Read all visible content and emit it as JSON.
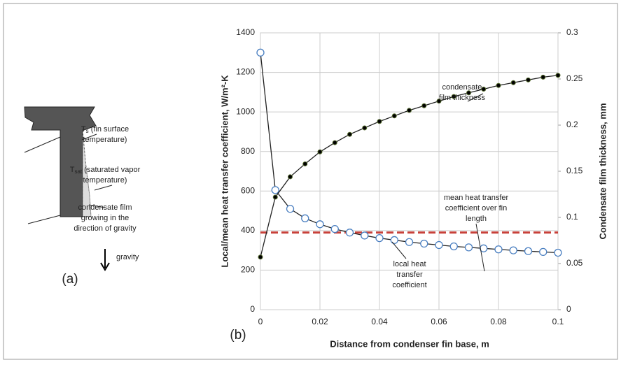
{
  "diagram": {
    "label": "(a)",
    "annotations": [
      {
        "symbol": "T",
        "subscript": "s",
        "lines": [
          "(fin surface",
          "temperature)"
        ]
      },
      {
        "symbol": "T",
        "subscript": "sat",
        "lines": [
          "(saturated vapor",
          "temperature)"
        ]
      },
      {
        "lines": [
          "condensate film",
          "growing in the",
          "direction of gravity"
        ]
      }
    ],
    "gravity": "gravity"
  },
  "chart_data": {
    "type": "line",
    "label": "(b)",
    "xlabel": "Distance from condenser fin base, m",
    "ylabel": "Local/mean heat transfer coefficient, W/m²-K",
    "y2label": "Condensate film thickness, mm",
    "x": [
      0,
      0.005,
      0.01,
      0.015,
      0.02,
      0.025,
      0.03,
      0.035,
      0.04,
      0.045,
      0.05,
      0.055,
      0.06,
      0.065,
      0.07,
      0.075,
      0.08,
      0.085,
      0.09,
      0.095,
      0.1
    ],
    "xlim": [
      0,
      0.1
    ],
    "xticks": [
      0,
      0.02,
      0.04,
      0.06,
      0.08,
      0.1
    ],
    "ylim": [
      0,
      1400
    ],
    "yticks": [
      0,
      200,
      400,
      600,
      800,
      1000,
      1200,
      1400
    ],
    "y2lim": [
      0,
      0.3
    ],
    "y2ticks": [
      0,
      0.05,
      0.1,
      0.15,
      0.2,
      0.25,
      0.3
    ],
    "grid": true,
    "series": [
      {
        "color": "#4a7fc1",
        "marker": "open",
        "values": [
          1300,
          605,
          510,
          462,
          432,
          408,
          390,
          375,
          362,
          352,
          342,
          334,
          327,
          320,
          315,
          310,
          305,
          300,
          296,
          292,
          288
        ]
      },
      {
        "color": "#000000",
        "marker": "filled",
        "axis": "y2",
        "values": [
          0.057,
          0.122,
          0.144,
          0.158,
          0.171,
          0.181,
          0.19,
          0.197,
          0.204,
          0.21,
          0.216,
          0.221,
          0.226,
          0.231,
          0.235,
          0.239,
          0.243,
          0.246,
          0.249,
          0.252,
          0.254
        ]
      }
    ],
    "reference_line": {
      "value": 390,
      "color": "#c8413a"
    },
    "annotations": [
      {
        "lines": [
          "condensate",
          "film thickness"
        ]
      },
      {
        "lines": [
          "mean heat transfer",
          "coefficient over fin",
          "length"
        ]
      },
      {
        "lines": [
          "local heat",
          "transfer",
          "coefficient"
        ]
      }
    ]
  }
}
